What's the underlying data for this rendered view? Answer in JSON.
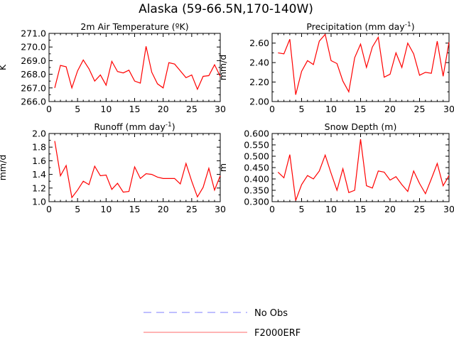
{
  "figure": {
    "title": "Alaska (59-66.5N,170-140W)"
  },
  "colors": {
    "model": "#ff0000",
    "obs": "#9999ff",
    "legend_model": "#ff8888",
    "axis": "#000000"
  },
  "legend": [
    {
      "label": "No Obs",
      "style": "dashed",
      "color": "#9999ff"
    },
    {
      "label": "F2000ERF",
      "style": "solid",
      "color": "#ff8888"
    }
  ],
  "chart_data": [
    {
      "type": "line",
      "title": "2m Air Temperature (ºK)",
      "title_pre": "2m Air Temperature (",
      "title_sup": "",
      "title_post": "ºK)",
      "ylabel": "K",
      "xlabel": "",
      "xlim": [
        0,
        30
      ],
      "ylim": [
        266.0,
        271.0
      ],
      "xticks": [
        0,
        5,
        10,
        15,
        20,
        25,
        30
      ],
      "yticks": [
        266.0,
        267.0,
        268.0,
        269.0,
        270.0,
        271.0
      ],
      "ytick_labels": [
        "266.0",
        "267.0",
        "268.0",
        "269.0",
        "270.0",
        "271.0"
      ],
      "series": [
        {
          "name": "F2000ERF",
          "x": [
            1,
            2,
            3,
            4,
            5,
            6,
            7,
            8,
            9,
            10,
            11,
            12,
            13,
            14,
            15,
            16,
            17,
            18,
            19,
            20,
            21,
            22,
            23,
            24,
            25,
            26,
            27,
            28,
            29,
            30
          ],
          "values": [
            267.0,
            268.65,
            268.55,
            267.0,
            268.25,
            269.05,
            268.4,
            267.5,
            267.95,
            267.2,
            268.95,
            268.2,
            268.1,
            268.3,
            267.5,
            267.35,
            270.05,
            268.15,
            267.3,
            267.0,
            268.85,
            268.75,
            268.25,
            267.75,
            267.95,
            266.9,
            267.85,
            267.9,
            268.7,
            267.85
          ]
        }
      ]
    },
    {
      "type": "line",
      "title": "Precipitation (mm day-1)",
      "title_pre": "Precipitation (mm day",
      "title_sup": "-1",
      "title_post": ")",
      "ylabel": "mm/d",
      "xlabel": "",
      "xlim": [
        0,
        30
      ],
      "ylim": [
        2.0,
        2.7
      ],
      "xticks": [
        0,
        5,
        10,
        15,
        20,
        25,
        30
      ],
      "yticks": [
        2.0,
        2.2,
        2.4,
        2.6
      ],
      "ytick_labels": [
        "2.00",
        "2.20",
        "2.40",
        "2.60"
      ],
      "series": [
        {
          "name": "F2000ERF",
          "x": [
            1,
            2,
            3,
            4,
            5,
            6,
            7,
            8,
            9,
            10,
            11,
            12,
            13,
            14,
            15,
            16,
            17,
            18,
            19,
            20,
            21,
            22,
            23,
            24,
            25,
            26,
            27,
            28,
            29,
            30
          ],
          "values": [
            2.5,
            2.49,
            2.64,
            2.07,
            2.31,
            2.42,
            2.38,
            2.62,
            2.69,
            2.42,
            2.39,
            2.21,
            2.1,
            2.45,
            2.59,
            2.35,
            2.56,
            2.66,
            2.25,
            2.28,
            2.5,
            2.35,
            2.6,
            2.49,
            2.27,
            2.3,
            2.29,
            2.62,
            2.26,
            2.61
          ]
        }
      ]
    },
    {
      "type": "line",
      "title": "Runoff (mm day-1)",
      "title_pre": "Runoff (mm day",
      "title_sup": "-1",
      "title_post": ")",
      "ylabel": "mm/d",
      "xlabel": "",
      "xlim": [
        0,
        30
      ],
      "ylim": [
        1.0,
        2.0
      ],
      "xticks": [
        0,
        5,
        10,
        15,
        20,
        25,
        30
      ],
      "yticks": [
        1.0,
        1.2,
        1.4,
        1.6,
        1.8,
        2.0
      ],
      "ytick_labels": [
        "1.0",
        "1.2",
        "1.4",
        "1.6",
        "1.8",
        "2.0"
      ],
      "series": [
        {
          "name": "F2000ERF",
          "x": [
            1,
            2,
            3,
            4,
            5,
            6,
            7,
            8,
            9,
            10,
            11,
            12,
            13,
            14,
            15,
            16,
            17,
            18,
            19,
            20,
            21,
            22,
            23,
            24,
            25,
            26,
            27,
            28,
            29,
            30
          ],
          "values": [
            1.89,
            1.38,
            1.53,
            1.06,
            1.17,
            1.3,
            1.25,
            1.52,
            1.38,
            1.39,
            1.18,
            1.27,
            1.14,
            1.15,
            1.51,
            1.34,
            1.41,
            1.4,
            1.36,
            1.34,
            1.34,
            1.34,
            1.26,
            1.56,
            1.3,
            1.07,
            1.21,
            1.49,
            1.17,
            1.38
          ]
        }
      ]
    },
    {
      "type": "line",
      "title": "Snow Depth (m)",
      "title_pre": "Snow Depth (m)",
      "title_sup": "",
      "title_post": "",
      "ylabel": "m",
      "xlabel": "",
      "xlim": [
        0,
        30
      ],
      "ylim": [
        0.3,
        0.6
      ],
      "xticks": [
        0,
        5,
        10,
        15,
        20,
        25,
        30
      ],
      "yticks": [
        0.3,
        0.35,
        0.4,
        0.45,
        0.5,
        0.55,
        0.6
      ],
      "ytick_labels": [
        "0.300",
        "0.350",
        "0.400",
        "0.450",
        "0.500",
        "0.550",
        "0.600"
      ],
      "series": [
        {
          "name": "F2000ERF",
          "x": [
            1,
            2,
            3,
            4,
            5,
            6,
            7,
            8,
            9,
            10,
            11,
            12,
            13,
            14,
            15,
            16,
            17,
            18,
            19,
            20,
            21,
            22,
            23,
            24,
            25,
            26,
            27,
            28,
            29,
            30
          ],
          "values": [
            0.43,
            0.405,
            0.507,
            0.305,
            0.375,
            0.415,
            0.4,
            0.435,
            0.505,
            0.425,
            0.35,
            0.445,
            0.34,
            0.35,
            0.575,
            0.37,
            0.36,
            0.435,
            0.43,
            0.395,
            0.41,
            0.375,
            0.345,
            0.435,
            0.38,
            0.335,
            0.4,
            0.468,
            0.37,
            0.415
          ]
        }
      ]
    }
  ]
}
